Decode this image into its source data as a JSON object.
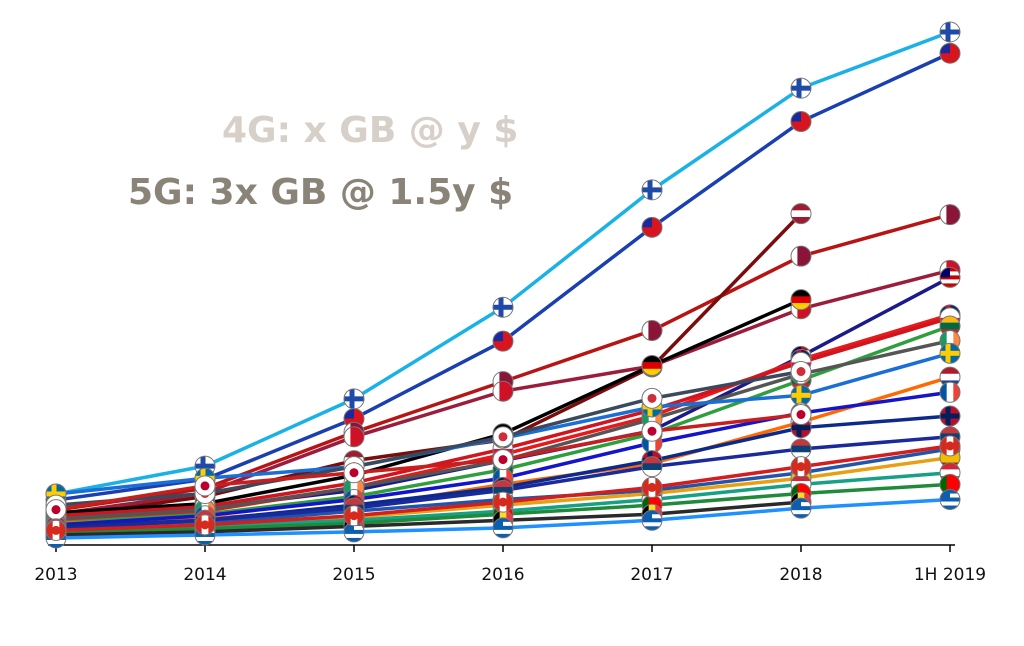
{
  "headline": {
    "line_4g": "4G: x GB @ y $",
    "line_5g": "5G: 3x GB @ 1.5y $",
    "color_4g": "#d6d0c8",
    "color_5g": "#8a8378"
  },
  "chart_data": {
    "type": "line",
    "title": "",
    "xlabel": "",
    "ylabel": "",
    "categories": [
      "2013",
      "2014",
      "2015",
      "2016",
      "2017",
      "2018",
      "1H 2019"
    ],
    "ylim": [
      0,
      100
    ],
    "grid": false,
    "legend": "none (country flag markers)",
    "series": [
      {
        "color": "#1ab2e6",
        "flag": "finland",
        "values": [
          8.7,
          14.2,
          27.5,
          45.6,
          68.8,
          88.9,
          100
        ]
      },
      {
        "color": "#1a3fb0",
        "flag": "taiwan",
        "values": [
          7.5,
          11.6,
          23.6,
          38.9,
          61.4,
          82.3,
          95.8
        ]
      },
      {
        "color": "#b81414",
        "flag": "qatar",
        "values": [
          5.5,
          9.8,
          20.9,
          30.9,
          41.0,
          55.7,
          63.9
        ]
      },
      {
        "color": "#7a0c0c",
        "flag": "latvia",
        "values": [
          4.1,
          8.2,
          15.3,
          19.4,
          33.8,
          64.1,
          null
        ]
      },
      {
        "color": "#9c1c3c",
        "flag": "bahrain",
        "values": [
          4.7,
          8.9,
          20.0,
          29.0,
          34.0,
          45.3,
          52.9
        ]
      },
      {
        "color": "#1a1a8c",
        "flag": "malaysia",
        "values": [
          3.5,
          5.9,
          9.4,
          15.3,
          21.2,
          35.9,
          51.5
        ]
      },
      {
        "color": "#000000",
        "flag": "germany",
        "values": [
          5.0,
          6.8,
          12.4,
          20.6,
          34.1,
          47.1,
          null
        ]
      },
      {
        "color": "#e61a1a",
        "flag": "uk",
        "values": [
          3.2,
          5.3,
          10.0,
          16.5,
          24.1,
          35.3,
          44.1
        ]
      },
      {
        "color": "#d2141e",
        "flag": "poland",
        "values": [
          4.4,
          6.2,
          10.9,
          17.6,
          25.3,
          34.7,
          43.5
        ]
      },
      {
        "color": "#2f9e3c",
        "flag": "lithuania",
        "values": [
          3.0,
          4.7,
          8.2,
          13.5,
          20.6,
          31.2,
          41.9
        ]
      },
      {
        "color": "#555555",
        "flag": "ireland",
        "values": [
          3.8,
          5.6,
          10.0,
          15.3,
          23.5,
          32.4,
          39.0
        ]
      },
      {
        "color": "#1a6fd6",
        "flag": "sweden",
        "values": [
          8.7,
          11.8,
          14.1,
          19.7,
          25.9,
          28.2,
          36.5
        ]
      },
      {
        "color": "#ff6a00",
        "flag": "netherlands",
        "values": [
          2.9,
          3.8,
          5.9,
          10.6,
          14.7,
          22.9,
          31.8
        ]
      },
      {
        "color": "#1414c8",
        "flag": "france",
        "values": [
          2.6,
          4.4,
          7.6,
          11.8,
          18.8,
          24.7,
          28.8
        ]
      },
      {
        "color": "#0c2a8c",
        "flag": "norway",
        "values": [
          2.3,
          3.5,
          6.5,
          10.0,
          15.3,
          21.8,
          24.1
        ]
      },
      {
        "color": "#3a4a5c",
        "flag": "south-korea",
        "values": [
          6.5,
          8.8,
          14.1,
          20.0,
          27.6,
          32.9,
          null
        ]
      },
      {
        "color": "#c81e1e",
        "flag": "japan",
        "values": [
          5.6,
          10.3,
          12.9,
          15.5,
          21.1,
          24.4,
          null
        ]
      },
      {
        "color": "#2255aa",
        "flag": "slovenia",
        "values": [
          1.8,
          2.9,
          5.3,
          7.6,
          9.4,
          12.9,
          17.6
        ]
      },
      {
        "color": "#e8a012",
        "flag": "spain",
        "values": [
          1.5,
          2.6,
          4.1,
          6.5,
          8.8,
          11.8,
          15.9
        ]
      },
      {
        "color": "#16a085",
        "flag": "hungary",
        "values": [
          1.2,
          2.3,
          3.5,
          5.3,
          7.6,
          10.6,
          12.9
        ]
      },
      {
        "color": "#1f8a3a",
        "flag": "portugal",
        "values": [
          0.9,
          1.8,
          2.9,
          4.7,
          6.5,
          8.8,
          10.6
        ]
      },
      {
        "color": "#2a2a2a",
        "flag": "belgium",
        "values": [
          0.6,
          1.2,
          2.3,
          3.5,
          4.7,
          7.1,
          null
        ]
      },
      {
        "color": "#1e90ff",
        "flag": "greece",
        "values": [
          0.0,
          0.6,
          1.2,
          2.0,
          3.5,
          5.9,
          7.6
        ]
      },
      {
        "color": "#1a2a9c",
        "flag": "serbia",
        "values": [
          1.8,
          3.5,
          5.9,
          9.4,
          14.1,
          17.6,
          20.0
        ]
      },
      {
        "color": "#d21e1e",
        "flag": "canada",
        "values": [
          1.5,
          2.6,
          4.4,
          7.1,
          10.0,
          14.1,
          18.2
        ]
      }
    ]
  }
}
